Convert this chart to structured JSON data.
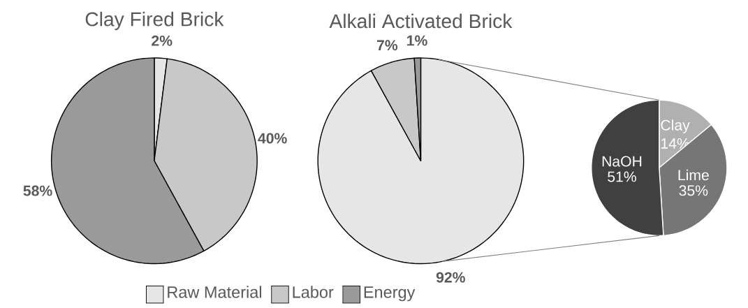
{
  "chart_data": [
    {
      "type": "pie",
      "title": "Clay Fired Brick",
      "categories": [
        "Raw Material",
        "Labor",
        "Energy"
      ],
      "values": [
        2,
        40,
        58
      ],
      "colors": [
        "#e6e6e6",
        "#c8c8c8",
        "#9a9a9a"
      ],
      "value_labels": [
        "2%",
        "40%",
        "58%"
      ],
      "legend": "bottom"
    },
    {
      "type": "pie",
      "title": "Alkali Activated Brick",
      "categories": [
        null,
        null,
        null
      ],
      "values": [
        92,
        7,
        1
      ],
      "colors": [
        "#e6e6e6",
        "#c8c8c8",
        "#9a9a9a"
      ],
      "value_labels": [
        "92%",
        "7%",
        "1%"
      ]
    },
    {
      "type": "pie",
      "categories": [
        "NaOH",
        "Clay",
        "Lime"
      ],
      "values": [
        51,
        14,
        35
      ],
      "colors": [
        "#404040",
        "#b0b0b0",
        "#767676"
      ],
      "value_labels": [
        "51%",
        "14%",
        "35%"
      ]
    }
  ]
}
